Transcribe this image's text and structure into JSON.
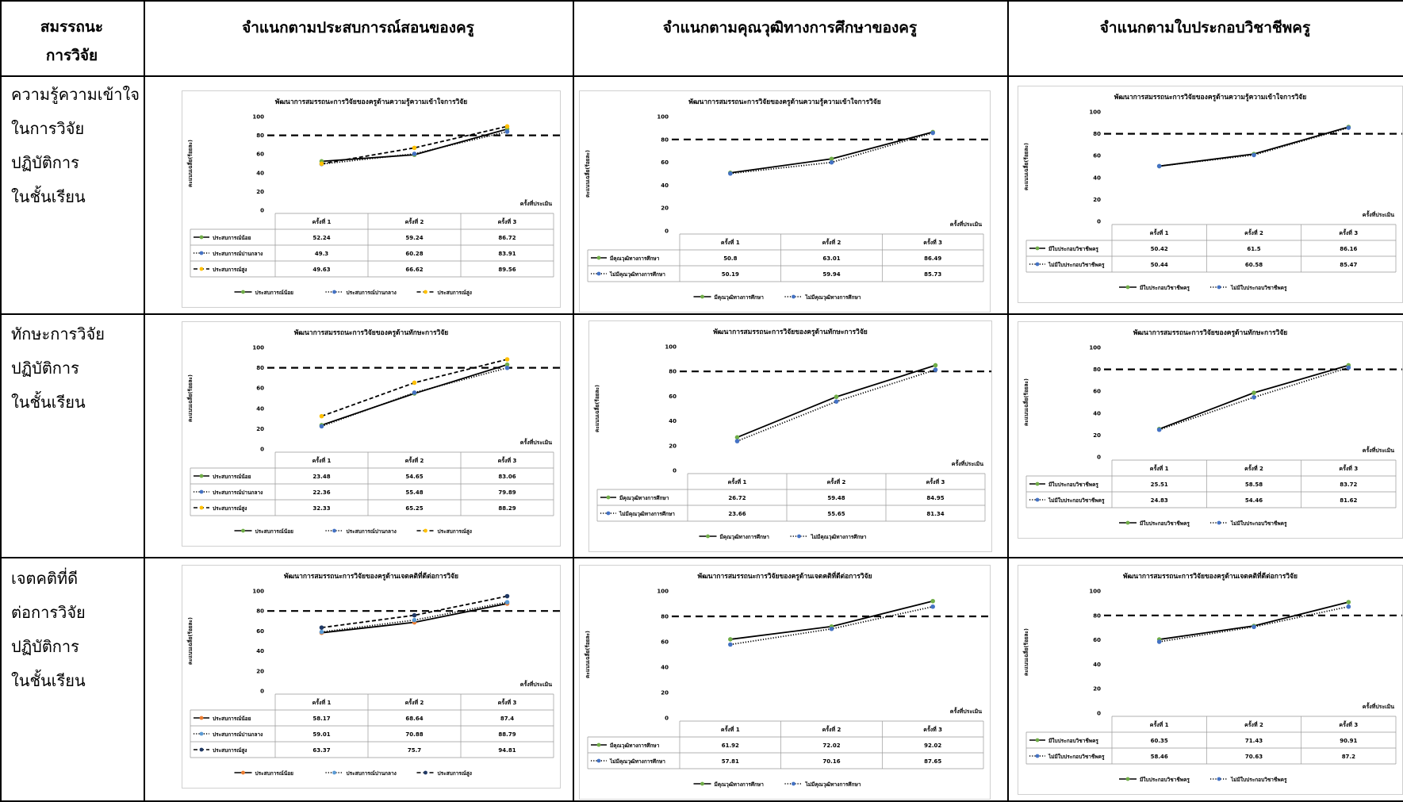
{
  "header": {
    "col0_line1": "สมรรถนะ",
    "col0_line2": "การวิจัย",
    "col1": "จำแนกตามประสบการณ์สอนของครู",
    "col2": "จำแนกตามคุณวุฒิทางการศึกษาของครู",
    "col3": "จำแนกตามใบประกอบวิชาชีพครู"
  },
  "rows": [
    {
      "lines": [
        "ความรู้ความเข้าใจ",
        "ในการวิจัย",
        "ปฏิบัติการ",
        "ในชั้นเรียน"
      ]
    },
    {
      "lines": [
        "ทักษะการวิจัย",
        "ปฏิบัติการ",
        "ในชั้นเรียน"
      ]
    },
    {
      "lines": [
        "เจตคติที่ดี",
        "ต่อการวิจัย",
        "ปฏิบัติการ",
        "ในชั้นเรียน"
      ]
    }
  ],
  "chart_data": [
    {
      "type": "line",
      "title": "พัฒนาการสมรรถนะการวิจัยของครูด้านความรู้ความเข้าใจการวิจัย",
      "ylabel": "คะแนนเฉลี่ย(ร้อยละ)",
      "xlabel": "ครั้งที่ประเมิน",
      "ylim": [
        0,
        100
      ],
      "yticks": [
        0,
        20,
        40,
        60,
        80,
        100
      ],
      "threshold": 80,
      "categories": [
        "ครั้งที่ 1",
        "ครั้งที่ 2",
        "ครั้งที่ 3"
      ],
      "series": [
        {
          "name": "ประสบการณ์น้อย",
          "values": [
            52.24,
            59.24,
            86.72
          ],
          "color": "#000000",
          "marker": "#70ad47",
          "dash": "solid"
        },
        {
          "name": "ประสบการณ์ปานกลาง",
          "values": [
            49.3,
            60.28,
            83.91
          ],
          "color": "#000000",
          "marker": "#4472c4",
          "dash": "dotted"
        },
        {
          "name": "ประสบการณ์สูง",
          "values": [
            49.63,
            66.62,
            89.56
          ],
          "color": "#000000",
          "marker": "#ffc000",
          "dash": "dashed"
        }
      ]
    },
    {
      "type": "line",
      "title": "พัฒนาการสมรรถนะการวิจัยของครูด้านความรู้ความเข้าใจการวิจัย",
      "ylabel": "คะแนนเฉลี่ย(ร้อยละ)",
      "xlabel": "ครั้งที่ประเมิน",
      "ylim": [
        0,
        100
      ],
      "yticks": [
        0,
        20,
        40,
        60,
        80,
        100
      ],
      "threshold": 80,
      "categories": [
        "ครั้งที่ 1",
        "ครั้งที่ 2",
        "ครั้งที่ 3"
      ],
      "series": [
        {
          "name": "มีคุณวุฒิทางการศึกษา",
          "values": [
            50.8,
            63.01,
            86.49
          ],
          "color": "#000000",
          "marker": "#70ad47",
          "dash": "solid"
        },
        {
          "name": "ไม่มีคุณวุฒิทางการศึกษา",
          "values": [
            50.19,
            59.94,
            85.73
          ],
          "color": "#000000",
          "marker": "#4472c4",
          "dash": "dotted"
        }
      ]
    },
    {
      "type": "line",
      "title": "พัฒนาการสมรรถนะการวิจัยของครูด้านความรู้ความเข้าใจการวิจัย",
      "ylabel": "คะแนนเฉลี่ย(ร้อยละ)",
      "xlabel": "ครั้งที่ประเมิน",
      "ylim": [
        0,
        100
      ],
      "yticks": [
        0,
        20,
        40,
        60,
        80,
        100
      ],
      "threshold": 80,
      "categories": [
        "ครั้งที่ 1",
        "ครั้งที่ 2",
        "ครั้งที่ 3"
      ],
      "series": [
        {
          "name": "มีใบประกอบวิชาชีพครู",
          "values": [
            50.42,
            61.5,
            86.16
          ],
          "color": "#000000",
          "marker": "#70ad47",
          "dash": "solid"
        },
        {
          "name": "ไม่มีใบประกอบวิชาชีพครู",
          "values": [
            50.44,
            60.58,
            85.47
          ],
          "color": "#000000",
          "marker": "#4472c4",
          "dash": "dotted"
        }
      ]
    },
    {
      "type": "line",
      "title": "พัฒนาการสมรรถนะการวิจัยของครูด้านทักษะการวิจัย",
      "ylabel": "คะแนนเฉลี่ย(ร้อยละ)",
      "xlabel": "ครั้งที่ประเมิน",
      "ylim": [
        0,
        100
      ],
      "yticks": [
        0,
        20,
        40,
        60,
        80,
        100
      ],
      "threshold": 80,
      "categories": [
        "ครั้งที่ 1",
        "ครั้งที่ 2",
        "ครั้งที่ 3"
      ],
      "series": [
        {
          "name": "ประสบการณ์น้อย",
          "values": [
            23.48,
            54.65,
            83.06
          ],
          "color": "#000000",
          "marker": "#70ad47",
          "dash": "solid"
        },
        {
          "name": "ประสบการณ์ปานกลาง",
          "values": [
            22.36,
            55.48,
            79.89
          ],
          "color": "#000000",
          "marker": "#4472c4",
          "dash": "dotted"
        },
        {
          "name": "ประสบการณ์สูง",
          "values": [
            32.33,
            65.25,
            88.29
          ],
          "color": "#000000",
          "marker": "#ffc000",
          "dash": "dashed"
        }
      ]
    },
    {
      "type": "line",
      "title": "พัฒนาการสมรรถนะการวิจัยของครูด้านทักษะการวิจัย",
      "ylabel": "คะแนนเฉลี่ย(ร้อยละ)",
      "xlabel": "ครั้งที่ประเมิน",
      "ylim": [
        0,
        100
      ],
      "yticks": [
        0,
        20,
        40,
        60,
        80,
        100
      ],
      "threshold": 80,
      "categories": [
        "ครั้งที่ 1",
        "ครั้งที่ 2",
        "ครั้งที่ 3"
      ],
      "series": [
        {
          "name": "มีคุณวุฒิทางการศึกษา",
          "values": [
            26.72,
            59.48,
            84.95
          ],
          "color": "#000000",
          "marker": "#70ad47",
          "dash": "solid"
        },
        {
          "name": "ไม่มีคุณวุฒิทางการศึกษา",
          "values": [
            23.66,
            55.65,
            81.34
          ],
          "color": "#000000",
          "marker": "#4472c4",
          "dash": "dotted"
        }
      ]
    },
    {
      "type": "line",
      "title": "พัฒนาการสมรรถนะการวิจัยของครูด้านทักษะการวิจัย",
      "ylabel": "คะแนนเฉลี่ย(ร้อยละ)",
      "xlabel": "ครั้งที่ประเมิน",
      "ylim": [
        0,
        100
      ],
      "yticks": [
        0,
        20,
        40,
        60,
        80,
        100
      ],
      "threshold": 80,
      "categories": [
        "ครั้งที่ 1",
        "ครั้งที่ 2",
        "ครั้งที่ 3"
      ],
      "series": [
        {
          "name": "มีใบประกอบวิชาชีพครู",
          "values": [
            25.51,
            58.58,
            83.72
          ],
          "color": "#000000",
          "marker": "#70ad47",
          "dash": "solid"
        },
        {
          "name": "ไม่มีใบประกอบวิชาชีพครู",
          "values": [
            24.83,
            54.46,
            81.62
          ],
          "color": "#000000",
          "marker": "#4472c4",
          "dash": "dotted"
        }
      ]
    },
    {
      "type": "line",
      "title": "พัฒนาการสมรรถนะการวิจัยของครูด้านเจตคติที่ดีต่อการวิจัย",
      "ylabel": "คะแนนเฉลี่ย(ร้อยละ)",
      "xlabel": "ครั้งที่ประเมิน",
      "ylim": [
        0,
        100
      ],
      "yticks": [
        0,
        20,
        40,
        60,
        80,
        100
      ],
      "threshold": 80,
      "categories": [
        "ครั้งที่ 1",
        "ครั้งที่ 2",
        "ครั้งที่ 3"
      ],
      "series": [
        {
          "name": "ประสบการณ์น้อย",
          "values": [
            58.17,
            68.64,
            87.4
          ],
          "color": "#000000",
          "marker": "#ed7d31",
          "dash": "solid"
        },
        {
          "name": "ประสบการณ์ปานกลาง",
          "values": [
            59.01,
            70.88,
            88.79
          ],
          "color": "#000000",
          "marker": "#5b9bd5",
          "dash": "dotted"
        },
        {
          "name": "ประสบการณ์สูง",
          "values": [
            63.37,
            75.7,
            94.81
          ],
          "color": "#000000",
          "marker": "#1f3864",
          "dash": "dashed"
        }
      ]
    },
    {
      "type": "line",
      "title": "พัฒนาการสมรรถนะการวิจัยของครูด้านเจตคติที่ดีต่อการวิจัย",
      "ylabel": "คะแนนเฉลี่ย(ร้อยละ)",
      "xlabel": "ครั้งที่ประเมิน",
      "ylim": [
        0,
        100
      ],
      "yticks": [
        0,
        20,
        40,
        60,
        80,
        100
      ],
      "threshold": 80,
      "categories": [
        "ครั้งที่ 1",
        "ครั้งที่ 2",
        "ครั้งที่ 3"
      ],
      "series": [
        {
          "name": "มีคุณวุฒิทางการศึกษา",
          "values": [
            61.92,
            72.02,
            92.02
          ],
          "color": "#000000",
          "marker": "#70ad47",
          "dash": "solid"
        },
        {
          "name": "ไม่มีคุณวุฒิทางการศึกษา",
          "values": [
            57.81,
            70.16,
            87.65
          ],
          "color": "#000000",
          "marker": "#4472c4",
          "dash": "dotted"
        }
      ]
    },
    {
      "type": "line",
      "title": "พัฒนาการสมรรถนะการวิจัยของครูด้านเจตคติที่ดีต่อการวิจัย",
      "ylabel": "คะแนนเฉลี่ย(ร้อยละ)",
      "xlabel": "ครั้งที่ประเมิน",
      "ylim": [
        0,
        100
      ],
      "yticks": [
        0,
        20,
        40,
        60,
        80,
        100
      ],
      "threshold": 80,
      "categories": [
        "ครั้งที่ 1",
        "ครั้งที่ 2",
        "ครั้งที่ 3"
      ],
      "series": [
        {
          "name": "มีใบประกอบวิชาชีพครู",
          "values": [
            60.35,
            71.43,
            90.91
          ],
          "color": "#000000",
          "marker": "#70ad47",
          "dash": "solid"
        },
        {
          "name": "ไม่มีใบประกอบวิชาชีพครู",
          "values": [
            58.46,
            70.63,
            87.2
          ],
          "color": "#000000",
          "marker": "#4472c4",
          "dash": "dotted"
        }
      ]
    }
  ]
}
